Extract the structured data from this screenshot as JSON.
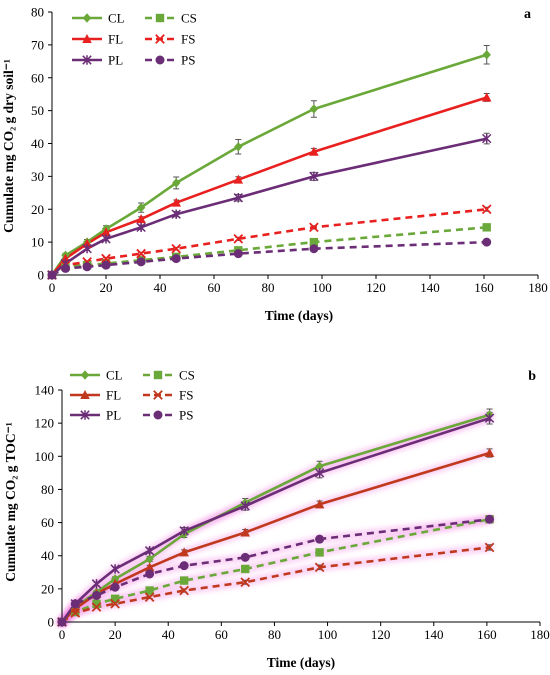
{
  "chart_data": [
    {
      "panel": "a",
      "type": "line",
      "xlabel": "Time (days)",
      "ylabel": "Cumulate mg CO₂ g dry soil⁻¹",
      "xlim": [
        0,
        180
      ],
      "ylim": [
        0,
        80
      ],
      "xticks": [
        0,
        20,
        40,
        60,
        80,
        100,
        120,
        140,
        160,
        180
      ],
      "yticks": [
        0,
        10,
        20,
        30,
        40,
        50,
        60,
        70,
        80
      ],
      "grid": false,
      "legend_position": "top-left",
      "x": [
        0,
        5,
        13,
        20,
        33,
        46,
        69,
        97,
        161
      ],
      "series": [
        {
          "name": "CL",
          "color": "#6aa839",
          "dashed": false,
          "marker": "diamond",
          "values": [
            0,
            6,
            10,
            14,
            20.5,
            28,
            39,
            50.5,
            67
          ],
          "errors": [
            0,
            0.6,
            0.8,
            1,
            1.4,
            1.8,
            2.2,
            2.5,
            2.8
          ]
        },
        {
          "name": "CS",
          "color": "#6aa839",
          "dashed": true,
          "marker": "square",
          "values": [
            0,
            2.5,
            3,
            3.5,
            4.5,
            5.5,
            7.5,
            10,
            14.5
          ],
          "errors": [
            0,
            0.3,
            0.3,
            0.3,
            0.4,
            0.4,
            0.5,
            0.6,
            0.7
          ]
        },
        {
          "name": "FL",
          "color": "#e8201f",
          "dashed": false,
          "marker": "triangle",
          "values": [
            0,
            5,
            9.5,
            13,
            17,
            22,
            29,
            37.5,
            54
          ],
          "errors": [
            0,
            0.4,
            0.5,
            0.6,
            0.7,
            0.8,
            0.9,
            1,
            1.2
          ]
        },
        {
          "name": "FS",
          "color": "#e8201f",
          "dashed": true,
          "marker": "x",
          "values": [
            0,
            3,
            4,
            5,
            6.5,
            8,
            11,
            14.5,
            20
          ],
          "errors": [
            0,
            0.3,
            0.3,
            0.3,
            0.4,
            0.4,
            0.5,
            0.5,
            0.6
          ]
        },
        {
          "name": "PL",
          "color": "#6c2d77",
          "dashed": false,
          "marker": "star",
          "values": [
            0,
            3.5,
            8,
            11,
            14.5,
            18.5,
            23.5,
            30,
            41.5
          ],
          "errors": [
            0,
            0.4,
            0.5,
            0.6,
            0.7,
            0.8,
            1,
            1.2,
            1.6
          ]
        },
        {
          "name": "PS",
          "color": "#6c2d77",
          "dashed": true,
          "marker": "circle",
          "values": [
            0,
            2,
            2.5,
            3,
            4,
            5,
            6.5,
            8,
            10
          ],
          "errors": [
            0,
            0.2,
            0.3,
            0.3,
            0.3,
            0.4,
            0.4,
            0.5,
            0.5
          ]
        }
      ]
    },
    {
      "panel": "b",
      "type": "line",
      "xlabel": "Time (days)",
      "ylabel": "Cumulate mg CO₂ g TOC⁻¹",
      "xlim": [
        0,
        180
      ],
      "ylim": [
        0,
        140
      ],
      "xticks": [
        0,
        20,
        40,
        60,
        80,
        100,
        120,
        140,
        160,
        180
      ],
      "yticks": [
        0,
        20,
        40,
        60,
        80,
        100,
        120,
        140
      ],
      "grid": false,
      "legend_position": "top-left",
      "x": [
        0,
        5,
        13,
        20,
        33,
        46,
        69,
        97,
        161
      ],
      "series": [
        {
          "name": "CL",
          "color": "#6aa839",
          "dashed": false,
          "marker": "diamond",
          "values": [
            0,
            9,
            18,
            26,
            38,
            53,
            72,
            94,
            125
          ],
          "errors": [
            0,
            0.8,
            1,
            1.2,
            1.5,
            2,
            2.5,
            3,
            3.5
          ]
        },
        {
          "name": "CS",
          "color": "#6aa839",
          "dashed": true,
          "marker": "square",
          "values": [
            0,
            6,
            11,
            14,
            19,
            25,
            32,
            42,
            62
          ],
          "errors": [
            0,
            0.5,
            0.6,
            0.8,
            1,
            1.2,
            1.5,
            1.8,
            2
          ]
        },
        {
          "name": "FL",
          "color": "#c0391e",
          "dashed": false,
          "marker": "triangle",
          "values": [
            0,
            8,
            17,
            23,
            33,
            42,
            54,
            71,
            102
          ],
          "errors": [
            0,
            0.6,
            0.8,
            1,
            1.2,
            1.5,
            1.8,
            2,
            2.5
          ]
        },
        {
          "name": "FS",
          "color": "#c0391e",
          "dashed": true,
          "marker": "x",
          "values": [
            0,
            5.5,
            9,
            11,
            15,
            19,
            24,
            33,
            45
          ],
          "errors": [
            0,
            0.4,
            0.5,
            0.6,
            0.8,
            1,
            1.2,
            1.4,
            1.6
          ]
        },
        {
          "name": "PL",
          "color": "#6c2d77",
          "dashed": false,
          "marker": "star",
          "values": [
            0,
            11,
            23,
            32,
            43,
            55,
            70,
            90,
            123
          ],
          "errors": [
            0,
            0.8,
            1,
            1.2,
            1.5,
            2,
            2.5,
            3,
            3.5
          ]
        },
        {
          "name": "PS",
          "color": "#6c2d77",
          "dashed": true,
          "marker": "circle",
          "values": [
            0,
            11,
            16,
            21,
            29,
            34,
            39,
            50,
            62
          ],
          "errors": [
            0,
            0.6,
            0.8,
            1,
            1.2,
            1.4,
            1.6,
            1.8,
            2
          ]
        }
      ]
    }
  ]
}
